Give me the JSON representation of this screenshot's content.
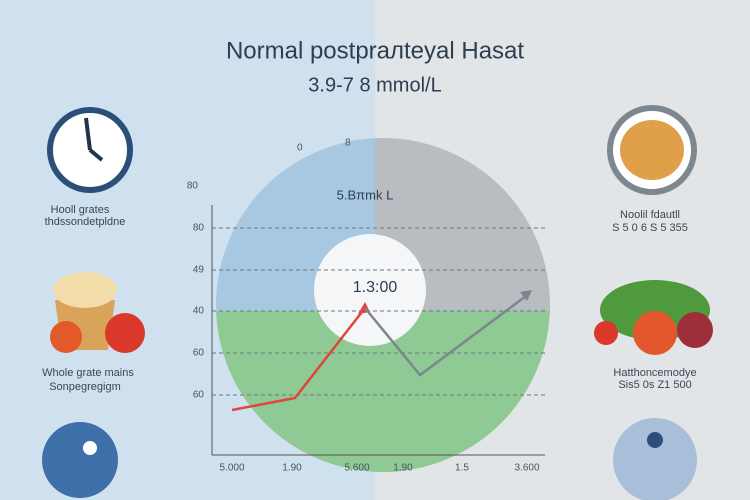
{
  "header": {
    "title": "Normal postpraлteyal Hasat",
    "subtitle": "3.9-7 8 mmol/L"
  },
  "chart": {
    "top_labels": [
      "0",
      "8"
    ],
    "inner_label": "5.Bπmk L",
    "center_label": "1.3:00",
    "y_labels": [
      "80",
      "80",
      "49",
      "40",
      "60",
      "60"
    ],
    "x_labels": [
      "5.000",
      "1.90",
      "5.600",
      "1.90",
      "1.5",
      "3.600"
    ]
  },
  "left_panels": [
    {
      "title": "Hooll grates",
      "text": "thdssondetpldne"
    },
    {
      "title": "Whole grate mains",
      "text": "Sonpegregigm"
    }
  ],
  "right_panels": [
    {
      "title": "Noolil fdautll",
      "text": "S 5 0 6 S 5 355"
    },
    {
      "title": "Hatthoncemodye",
      "text": "Sis5 0s Z1 500"
    }
  ]
}
